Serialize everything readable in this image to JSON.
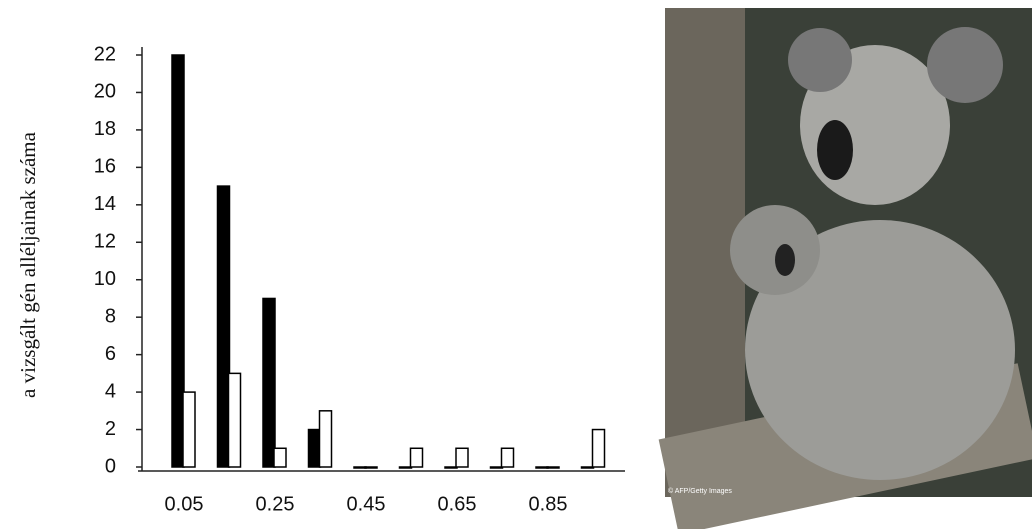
{
  "chart_data": {
    "type": "bar",
    "y_label": "a vizsgált gén alléljainak száma",
    "categories": [
      "0.05",
      null,
      "0.25",
      null,
      "0.45",
      null,
      "0.65",
      null,
      "0.85",
      null
    ],
    "series": [
      {
        "color": "#000000",
        "values": [
          22,
          15,
          9,
          2,
          0,
          0,
          0,
          0,
          0,
          0
        ]
      },
      {
        "color": "#ffffff",
        "values": [
          4,
          5,
          1,
          3,
          0,
          1,
          1,
          1,
          0,
          2
        ]
      }
    ],
    "ylim": [
      0,
      22
    ],
    "yticks": [
      0,
      2,
      4,
      6,
      8,
      10,
      12,
      14,
      16,
      18,
      20,
      22
    ],
    "grid": false
  },
  "photo": {
    "caption": "© AFP/Getty Images"
  }
}
